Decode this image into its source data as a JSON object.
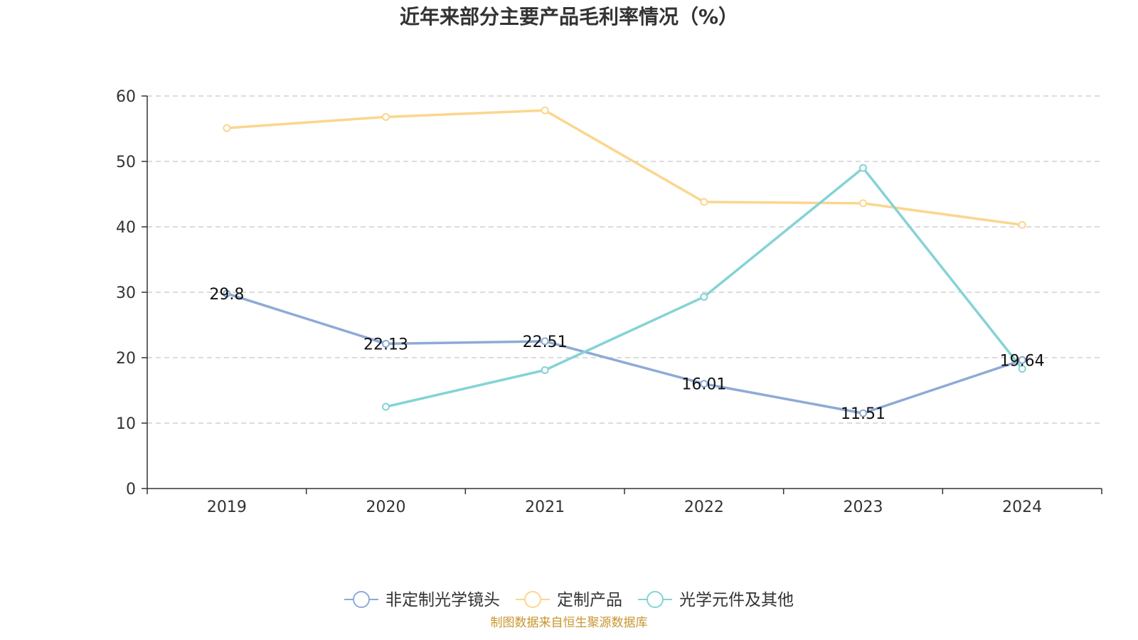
{
  "chart_data": {
    "type": "line",
    "title": "近年来部分主要产品毛利率情况（%）",
    "xlabel": "",
    "ylabel": "",
    "categories": [
      "2019",
      "2020",
      "2021",
      "2022",
      "2023",
      "2024"
    ],
    "ylim": [
      0,
      60
    ],
    "yticks": [
      0,
      10,
      20,
      30,
      40,
      50,
      60
    ],
    "grid": true,
    "legend_position": "bottom",
    "series": [
      {
        "name": "非定制光学镜头",
        "color": "#8eaad6",
        "values": [
          29.8,
          22.13,
          22.51,
          16.01,
          11.51,
          19.64
        ],
        "labels": [
          "29.8",
          "22.13",
          "22.51",
          "16.01",
          "11.51",
          "19.64"
        ],
        "show_labels": true
      },
      {
        "name": "定制产品",
        "color": "#fbd68e",
        "values": [
          55.1,
          56.8,
          57.8,
          43.8,
          43.6,
          40.3
        ],
        "show_labels": false
      },
      {
        "name": "光学元件及其他",
        "color": "#84d3d6",
        "values": [
          null,
          12.5,
          18.1,
          29.3,
          49.0,
          18.3
        ],
        "show_labels": false
      }
    ]
  },
  "source": {
    "text": "制图数据来自恒生聚源数据库",
    "color": "#c8962e"
  }
}
